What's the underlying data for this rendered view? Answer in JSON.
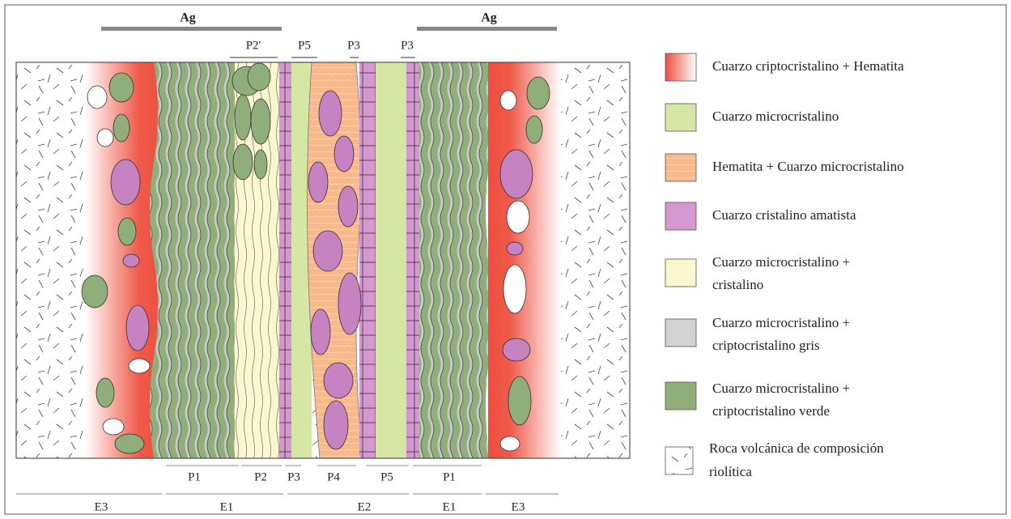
{
  "top_labels": {
    "ag": [
      "Ag",
      "Ag"
    ],
    "phases": [
      "P2'",
      "P5",
      "P3",
      "P3"
    ]
  },
  "bottom_labels": {
    "phases": [
      "P1",
      "P2",
      "P3",
      "P4",
      "P5",
      "P1"
    ],
    "stages": [
      "E3",
      "E1",
      "E2",
      "E1",
      "E3"
    ]
  },
  "legend": [
    {
      "lines": [
        "Cuarzo criptocristalino  + Hematita"
      ]
    },
    {
      "lines": [
        "Cuarzo microcristalino"
      ]
    },
    {
      "lines": [
        "Hematita + Cuarzo microcristalino"
      ]
    },
    {
      "lines": [
        "Cuarzo cristalino  amatista"
      ]
    },
    {
      "lines": [
        "Cuarzo microcristalino  +",
        "cristalino"
      ]
    },
    {
      "lines": [
        "Cuarzo microcristalino  +",
        "criptocristalino gris"
      ]
    },
    {
      "lines": [
        "Cuarzo microcristalino  +",
        "criptocristalino verde"
      ]
    },
    {
      "lines": [
        "Roca volcánica de composición",
        "riolítica"
      ]
    }
  ]
}
